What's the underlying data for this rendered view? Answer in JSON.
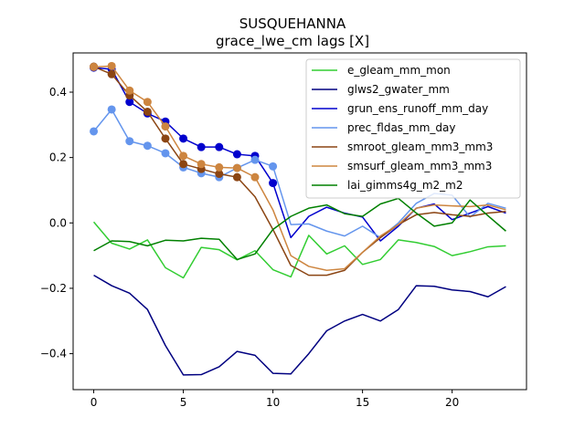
{
  "chart_data": {
    "type": "line",
    "title": "SUSQUEHANNA",
    "subtitle": "grace_lwe_cm lags [X]",
    "xlabel": "",
    "ylabel": "",
    "xlim": [
      -1.15,
      24.15
    ],
    "ylim": [
      -0.51,
      0.52
    ],
    "xticks": [
      0,
      5,
      10,
      15,
      20
    ],
    "yticks": [
      -0.4,
      -0.2,
      0.0,
      0.2,
      0.4
    ],
    "ytick_labels": [
      "−0.4",
      "−0.2",
      "0.0",
      "0.2",
      "0.4"
    ],
    "legend_position": "upper right",
    "grid": false,
    "x": [
      0,
      1,
      2,
      3,
      4,
      5,
      6,
      7,
      8,
      9,
      10,
      11,
      12,
      13,
      14,
      15,
      16,
      17,
      18,
      19,
      20,
      21,
      22,
      23
    ],
    "series": [
      {
        "name": "e_gleam_mm_mon",
        "color": "#32cd32",
        "values": [
          0.003,
          -0.062,
          -0.08,
          -0.052,
          -0.137,
          -0.168,
          -0.075,
          -0.082,
          -0.113,
          -0.085,
          -0.143,
          -0.165,
          -0.038,
          -0.095,
          -0.07,
          -0.127,
          -0.112,
          -0.052,
          -0.06,
          -0.072,
          -0.1,
          -0.088,
          -0.073,
          -0.07
        ],
        "markers": []
      },
      {
        "name": "glws2_gwater_mm",
        "color": "#000080",
        "values": [
          -0.16,
          -0.192,
          -0.215,
          -0.265,
          -0.375,
          -0.465,
          -0.464,
          -0.44,
          -0.393,
          -0.405,
          -0.46,
          -0.462,
          -0.4,
          -0.33,
          -0.3,
          -0.28,
          -0.3,
          -0.265,
          -0.192,
          -0.194,
          -0.205,
          -0.21,
          -0.226,
          -0.195
        ],
        "markers": []
      },
      {
        "name": "grun_ens_runoff_mm_day",
        "color": "#0000cd",
        "values": [
          0.475,
          0.47,
          0.37,
          0.335,
          0.31,
          0.258,
          0.232,
          0.232,
          0.21,
          0.205,
          0.122,
          -0.045,
          0.02,
          0.048,
          0.03,
          0.018,
          -0.055,
          -0.01,
          0.045,
          0.058,
          0.01,
          0.03,
          0.05,
          0.03
        ],
        "markers": [
          0,
          1,
          2,
          3,
          4,
          5,
          6,
          7,
          8,
          9,
          10
        ]
      },
      {
        "name": "prec_fldas_mm_day",
        "color": "#6495ed",
        "values": [
          0.28,
          0.347,
          0.25,
          0.236,
          0.213,
          0.17,
          0.152,
          0.14,
          0.168,
          0.193,
          0.173,
          -0.005,
          -0.003,
          -0.025,
          -0.04,
          -0.01,
          -0.045,
          0.0,
          0.06,
          0.09,
          0.085,
          0.018,
          0.06,
          0.045
        ],
        "markers": [
          0,
          1,
          2,
          3,
          4,
          5,
          6,
          7,
          8,
          9,
          10
        ]
      },
      {
        "name": "smroot_gleam_mm3_mm3",
        "color": "#8b4513",
        "values": [
          0.478,
          0.455,
          0.39,
          0.34,
          0.258,
          0.18,
          0.165,
          0.15,
          0.14,
          0.08,
          -0.02,
          -0.13,
          -0.16,
          -0.16,
          -0.145,
          -0.09,
          -0.045,
          -0.005,
          0.025,
          0.032,
          0.025,
          0.02,
          0.03,
          0.035
        ],
        "markers": [
          0,
          1,
          2,
          3,
          4,
          5,
          6,
          7,
          8
        ]
      },
      {
        "name": "smsurf_gleam_mm3_mm3",
        "color": "#cd853f",
        "values": [
          0.477,
          0.48,
          0.405,
          0.37,
          0.295,
          0.205,
          0.18,
          0.17,
          0.168,
          0.14,
          0.04,
          -0.1,
          -0.133,
          -0.145,
          -0.14,
          -0.09,
          -0.04,
          -0.005,
          0.045,
          0.055,
          0.052,
          0.05,
          0.055,
          0.04
        ],
        "markers": [
          0,
          1,
          2,
          3,
          4,
          5,
          6,
          7,
          8,
          9
        ]
      },
      {
        "name": "lai_gimms4g_m2_m2",
        "color": "#008000",
        "values": [
          -0.085,
          -0.055,
          -0.057,
          -0.07,
          -0.053,
          -0.055,
          -0.047,
          -0.05,
          -0.112,
          -0.095,
          -0.02,
          0.02,
          0.045,
          0.055,
          0.028,
          0.02,
          0.058,
          0.075,
          0.03,
          -0.01,
          0.0,
          0.07,
          0.022,
          -0.025
        ],
        "markers": []
      }
    ]
  }
}
